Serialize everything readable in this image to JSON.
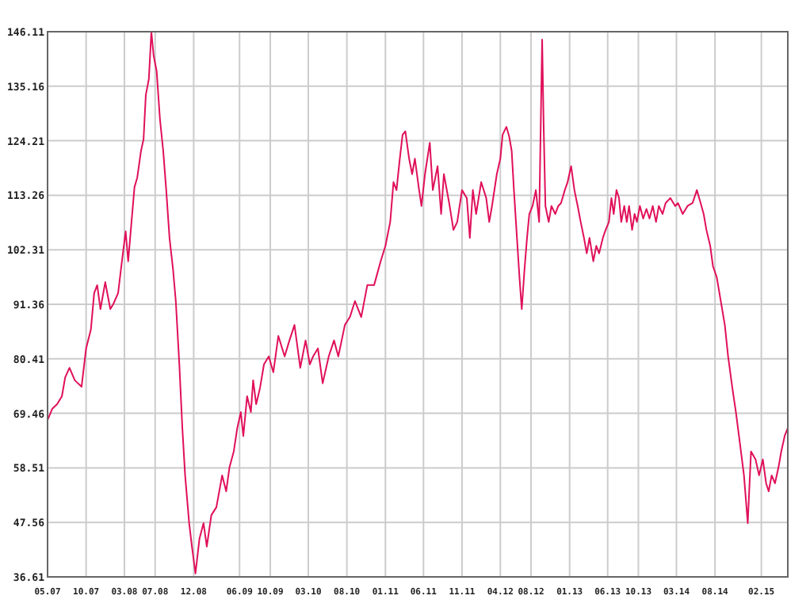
{
  "chart_data": {
    "type": "line",
    "grid": true,
    "marker": "none",
    "line_style": "solid",
    "xlim": [
      "2007-05-01",
      "2015-05-17"
    ],
    "xticks": [
      {
        "value": "2007-05",
        "label": "05.07"
      },
      {
        "value": "2007-10",
        "label": "10.07"
      },
      {
        "value": "2008-03",
        "label": "03.08"
      },
      {
        "value": "2008-07",
        "label": "07.08"
      },
      {
        "value": "2008-12",
        "label": "12.08"
      },
      {
        "value": "2009-06",
        "label": "06.09"
      },
      {
        "value": "2009-10",
        "label": "10.09"
      },
      {
        "value": "2010-03",
        "label": "03.10"
      },
      {
        "value": "2010-08",
        "label": "08.10"
      },
      {
        "value": "2011-01",
        "label": "01.11"
      },
      {
        "value": "2011-06",
        "label": "06.11"
      },
      {
        "value": "2011-11",
        "label": "11.11"
      },
      {
        "value": "2012-04",
        "label": "04.12"
      },
      {
        "value": "2012-08",
        "label": "08.12"
      },
      {
        "value": "2013-01",
        "label": "01.13"
      },
      {
        "value": "2013-06",
        "label": "06.13"
      },
      {
        "value": "2013-10",
        "label": "10.13"
      },
      {
        "value": "2014-03",
        "label": "03.14"
      },
      {
        "value": "2014-08",
        "label": "08.14"
      },
      {
        "value": "2015-02",
        "label": "02.15"
      }
    ],
    "ylim": [
      36.61,
      146.11
    ],
    "yticks": [
      36.61,
      47.56,
      58.51,
      69.46,
      80.41,
      91.36,
      102.31,
      113.26,
      124.21,
      135.16,
      146.11
    ],
    "series": [
      {
        "color": "#e0105a",
        "x": [
          "2007-05-01",
          "2007-05-20",
          "2007-06-08",
          "2007-06-27",
          "2007-07-10",
          "2007-07-27",
          "2007-08-17",
          "2007-09-13",
          "2007-10-01",
          "2007-10-20",
          "2007-11-02",
          "2007-11-14",
          "2007-11-27",
          "2007-12-16",
          "2008-01-05",
          "2008-01-17",
          "2008-02-05",
          "2008-02-24",
          "2008-03-06",
          "2008-03-16",
          "2008-03-25",
          "2008-04-10",
          "2008-04-21",
          "2008-05-06",
          "2008-05-16",
          "2008-05-25",
          "2008-06-06",
          "2008-06-16",
          "2008-06-25",
          "2008-07-07",
          "2008-07-20",
          "2008-08-02",
          "2008-08-14",
          "2008-08-27",
          "2008-09-10",
          "2008-09-21",
          "2008-10-05",
          "2008-10-17",
          "2008-10-28",
          "2008-11-13",
          "2008-11-24",
          "2008-12-08",
          "2008-12-24",
          "2009-01-09",
          "2009-01-22",
          "2009-02-09",
          "2009-03-01",
          "2009-03-24",
          "2009-04-09",
          "2009-04-22",
          "2009-05-09",
          "2009-05-23",
          "2009-06-06",
          "2009-06-16",
          "2009-07-01",
          "2009-07-16",
          "2009-07-25",
          "2009-08-06",
          "2009-08-21",
          "2009-09-06",
          "2009-09-25",
          "2009-10-13",
          "2009-11-02",
          "2009-11-27",
          "2009-12-16",
          "2010-01-05",
          "2010-01-28",
          "2010-02-18",
          "2010-03-07",
          "2010-03-20",
          "2010-04-08",
          "2010-04-27",
          "2010-05-21",
          "2010-06-11",
          "2010-06-28",
          "2010-07-24",
          "2010-08-13",
          "2010-09-02",
          "2010-09-27",
          "2010-10-21",
          "2010-11-17",
          "2010-12-13",
          "2011-01-01",
          "2011-01-20",
          "2011-02-02",
          "2011-02-14",
          "2011-02-27",
          "2011-03-10",
          "2011-03-21",
          "2011-04-05",
          "2011-04-17",
          "2011-04-28",
          "2011-05-13",
          "2011-05-24",
          "2011-06-07",
          "2011-06-26",
          "2011-07-08",
          "2011-07-27",
          "2011-08-10",
          "2011-08-21",
          "2011-09-11",
          "2011-09-28",
          "2011-10-13",
          "2011-11-01",
          "2011-11-20",
          "2011-12-02",
          "2011-12-14",
          "2011-12-27",
          "2012-01-16",
          "2012-02-05",
          "2012-02-17",
          "2012-02-28",
          "2012-03-18",
          "2012-04-01",
          "2012-04-10",
          "2012-04-25",
          "2012-05-06",
          "2012-05-16",
          "2012-05-25",
          "2012-06-06",
          "2012-06-16",
          "2012-06-25",
          "2012-07-06",
          "2012-07-16",
          "2012-07-25",
          "2012-08-07",
          "2012-08-20",
          "2012-09-02",
          "2012-09-14",
          "2012-09-20",
          "2012-09-27",
          "2012-10-10",
          "2012-10-21",
          "2012-11-05",
          "2012-11-17",
          "2012-11-28",
          "2012-12-13",
          "2012-12-24",
          "2013-01-07",
          "2013-01-20",
          "2013-02-02",
          "2013-02-14",
          "2013-02-27",
          "2013-03-10",
          "2013-03-21",
          "2013-04-05",
          "2013-04-17",
          "2013-04-28",
          "2013-05-13",
          "2013-05-24",
          "2013-06-06",
          "2013-06-16",
          "2013-06-25",
          "2013-07-06",
          "2013-07-16",
          "2013-07-25",
          "2013-08-06",
          "2013-08-16",
          "2013-08-25",
          "2013-09-06",
          "2013-09-16",
          "2013-09-25",
          "2013-10-07",
          "2013-10-20",
          "2013-11-02",
          "2013-11-14",
          "2013-11-27",
          "2013-12-10",
          "2013-12-21",
          "2014-01-05",
          "2014-01-17",
          "2014-02-05",
          "2014-02-24",
          "2014-03-07",
          "2014-03-26",
          "2014-04-14",
          "2014-05-04",
          "2014-05-21",
          "2014-06-05",
          "2014-06-17",
          "2014-06-28",
          "2014-07-13",
          "2014-07-24",
          "2014-08-08",
          "2014-08-24",
          "2014-09-09",
          "2014-09-22",
          "2014-10-09",
          "2014-10-23",
          "2014-11-08",
          "2014-11-24",
          "2014-12-09",
          "2014-12-22",
          "2015-01-09",
          "2015-01-23",
          "2015-02-07",
          "2015-02-20",
          "2015-03-02",
          "2015-03-14",
          "2015-03-27",
          "2015-04-10",
          "2015-04-21",
          "2015-05-05",
          "2015-05-17"
        ],
        "values": [
          68.1,
          70.4,
          71.3,
          72.9,
          76.7,
          78.6,
          76.1,
          74.8,
          82.5,
          86.3,
          93.6,
          95.2,
          90.4,
          95.8,
          90.4,
          91.4,
          93.6,
          101.6,
          106.0,
          100.0,
          105.4,
          114.9,
          116.8,
          122.2,
          124.5,
          133.4,
          136.6,
          146.1,
          141.3,
          138.2,
          128.6,
          122.2,
          114.3,
          104.7,
          98.4,
          92.0,
          79.3,
          66.5,
          57.0,
          47.4,
          42.7,
          37.3,
          44.3,
          47.4,
          42.7,
          49.0,
          50.6,
          57.0,
          53.8,
          58.6,
          61.8,
          66.5,
          69.7,
          64.9,
          72.9,
          69.7,
          76.1,
          71.3,
          74.5,
          79.3,
          80.9,
          77.7,
          85.0,
          80.9,
          84.1,
          87.2,
          78.6,
          84.1,
          79.3,
          80.9,
          82.5,
          75.5,
          80.9,
          84.1,
          80.9,
          87.2,
          88.8,
          92.0,
          88.8,
          95.2,
          95.2,
          100.0,
          103.1,
          107.9,
          115.9,
          114.3,
          120.6,
          125.4,
          126.1,
          120.6,
          117.5,
          120.6,
          114.9,
          111.1,
          117.5,
          123.8,
          114.3,
          119.1,
          109.5,
          117.5,
          111.7,
          106.3,
          107.9,
          114.3,
          112.7,
          104.7,
          114.3,
          109.5,
          115.9,
          112.7,
          107.9,
          111.1,
          117.5,
          120.6,
          125.4,
          127.0,
          125.1,
          122.2,
          114.3,
          104.7,
          96.8,
          90.4,
          98.4,
          104.7,
          109.5,
          111.1,
          114.3,
          107.9,
          144.5,
          127.0,
          111.1,
          107.9,
          111.1,
          109.5,
          111.1,
          111.7,
          114.3,
          115.9,
          119.1,
          114.3,
          111.1,
          107.9,
          104.7,
          101.6,
          104.7,
          100.0,
          103.1,
          101.6,
          104.7,
          106.3,
          107.9,
          112.7,
          109.5,
          114.3,
          112.7,
          107.9,
          111.1,
          107.9,
          111.1,
          106.3,
          109.5,
          107.9,
          111.1,
          108.6,
          110.5,
          108.6,
          111.1,
          107.9,
          111.1,
          109.5,
          111.7,
          112.7,
          111.1,
          111.7,
          109.5,
          111.1,
          111.7,
          114.3,
          111.7,
          109.5,
          106.3,
          103.1,
          99.0,
          96.8,
          92.0,
          87.2,
          80.9,
          74.5,
          69.7,
          63.4,
          57.0,
          47.4,
          61.8,
          60.2,
          57.0,
          60.2,
          55.4,
          53.8,
          57.0,
          55.4,
          58.6,
          61.8,
          65.0,
          66.5
        ]
      }
    ]
  }
}
